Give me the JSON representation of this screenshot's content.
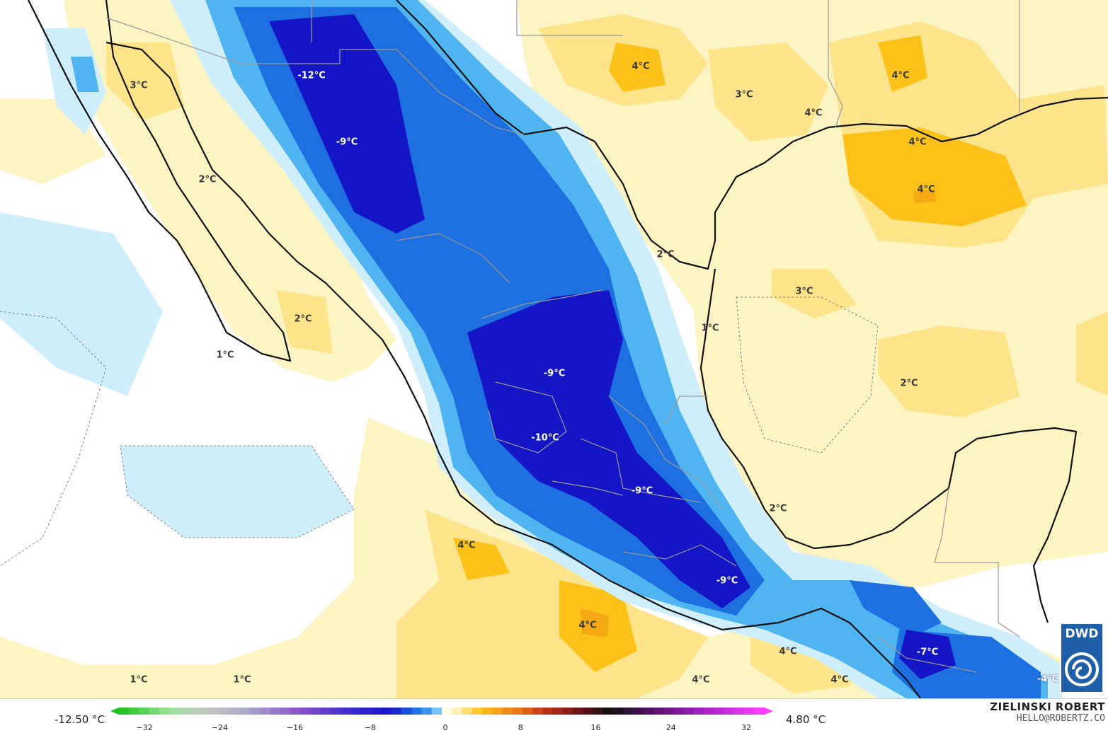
{
  "temperature_labels": [
    {
      "text": "-12°C",
      "negative": true
    },
    {
      "text": "-9°C",
      "negative": true
    },
    {
      "text": "-9°C",
      "negative": true
    },
    {
      "text": "-10°C",
      "negative": true
    },
    {
      "text": "-9°C",
      "negative": true
    },
    {
      "text": "-9°C",
      "negative": true
    },
    {
      "text": "-7°C",
      "negative": true
    },
    {
      "text": "-4°C",
      "negative": true
    },
    {
      "text": "3°C",
      "negative": false
    },
    {
      "text": "2°C",
      "negative": false
    },
    {
      "text": "2°C",
      "negative": false
    },
    {
      "text": "1°C",
      "negative": false
    },
    {
      "text": "4°C",
      "negative": false
    },
    {
      "text": "3°C",
      "negative": false
    },
    {
      "text": "4°C",
      "negative": false
    },
    {
      "text": "4°C",
      "negative": false
    },
    {
      "text": "4°C",
      "negative": false
    },
    {
      "text": "4°C",
      "negative": false
    },
    {
      "text": "2°C",
      "negative": false
    },
    {
      "text": "3°C",
      "negative": false
    },
    {
      "text": "1°C",
      "negative": false
    },
    {
      "text": "2°C",
      "negative": false
    },
    {
      "text": "2°C",
      "negative": false
    },
    {
      "text": "4°C",
      "negative": false
    },
    {
      "text": "4°C",
      "negative": false
    },
    {
      "text": "1°C",
      "negative": false
    },
    {
      "text": "1°C",
      "negative": false
    },
    {
      "text": "4°C",
      "negative": false
    },
    {
      "text": "4°C",
      "negative": false
    },
    {
      "text": "4°C",
      "negative": false
    }
  ],
  "colorbar": {
    "min_label": "-12.50 °C",
    "max_label": "4.80 °C",
    "ticks": [
      "-32",
      "-24",
      "-16",
      "-8",
      "0",
      "8",
      "16",
      "24",
      "32"
    ]
  },
  "credit": {
    "name": "ZIELINSKI ROBERT",
    "email": "HELLO@ROBERTZ.CO"
  },
  "logo": {
    "text": "DWD",
    "bg_color": "#1f5fa8"
  },
  "colors": {
    "deep_blue": "#1515c8",
    "mid_blue": "#1e6fe0",
    "light_blue": "#4fb4f0",
    "pale_blue": "#cfeefb",
    "pale_yellow": "#fdf4c4",
    "yellow": "#fde48a",
    "orange": "#fcc21a",
    "dark_orange": "#f5a914",
    "coast": "#111111",
    "border": "#9a9a9a"
  }
}
